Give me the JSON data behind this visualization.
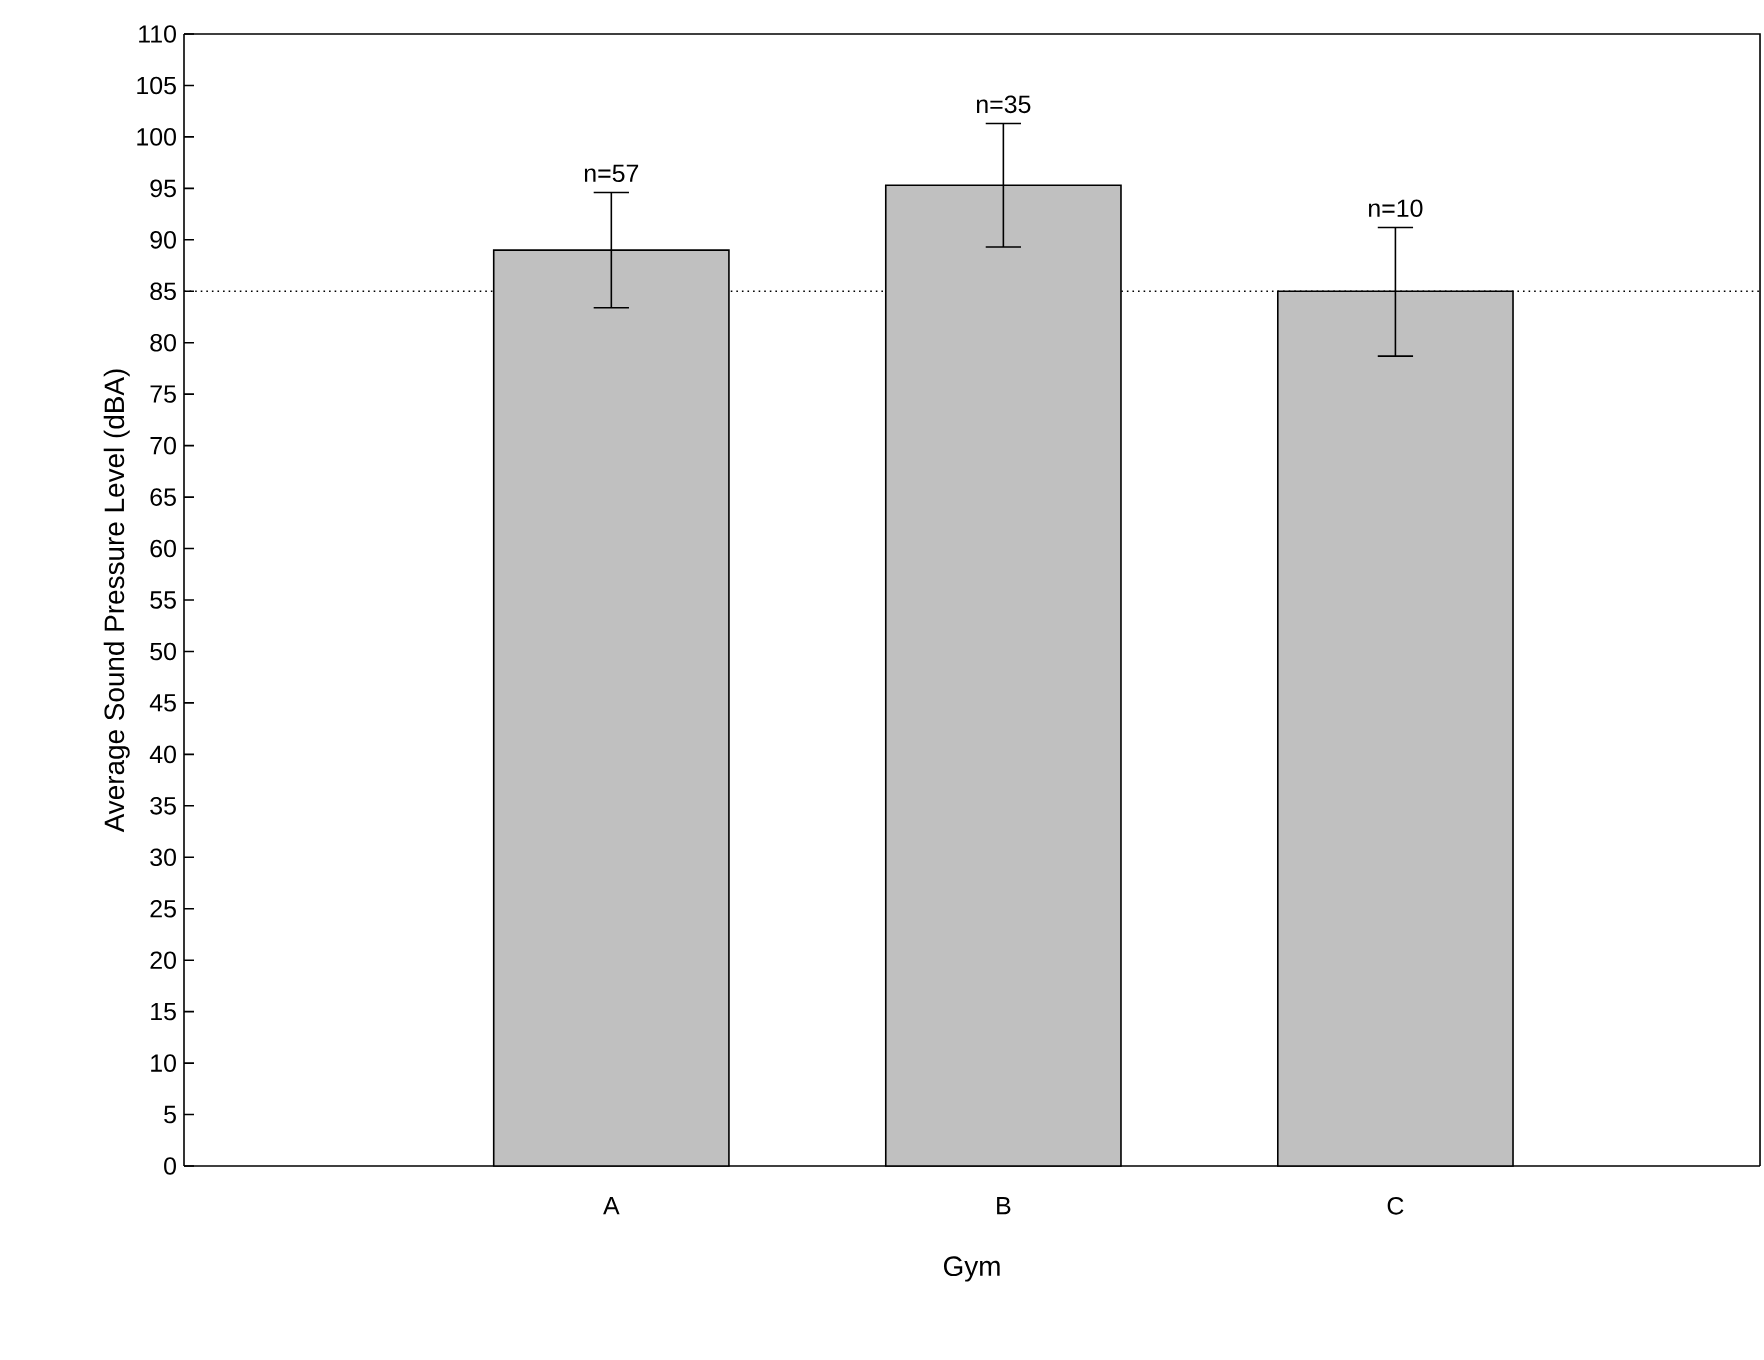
{
  "chart_data": {
    "type": "bar",
    "xlabel": "Gym",
    "ylabel": "Average Sound Pressure Level (dBA)",
    "categories": [
      "A",
      "B",
      "C"
    ],
    "values": [
      89.0,
      95.3,
      85.0
    ],
    "errors": [
      [
        83.4,
        94.6
      ],
      [
        89.3,
        101.3
      ],
      [
        78.7,
        91.2
      ]
    ],
    "color": "#c0c0c0",
    "ylim": [
      0,
      110
    ],
    "yticks": [
      0,
      5,
      10,
      15,
      20,
      25,
      30,
      35,
      40,
      45,
      50,
      55,
      60,
      65,
      70,
      75,
      80,
      85,
      90,
      95,
      100,
      105,
      110
    ],
    "ref_lines": [
      {
        "axis": "y",
        "value": 85,
        "line_style": "dotted",
        "color": "#000000"
      }
    ],
    "annotations": [
      {
        "text": "n=57",
        "x": "A",
        "y": 94.6
      },
      {
        "text": "n=35",
        "x": "B",
        "y": 101.3
      },
      {
        "text": "n=10",
        "x": "C",
        "y": 91.2
      }
    ],
    "grid": false
  }
}
